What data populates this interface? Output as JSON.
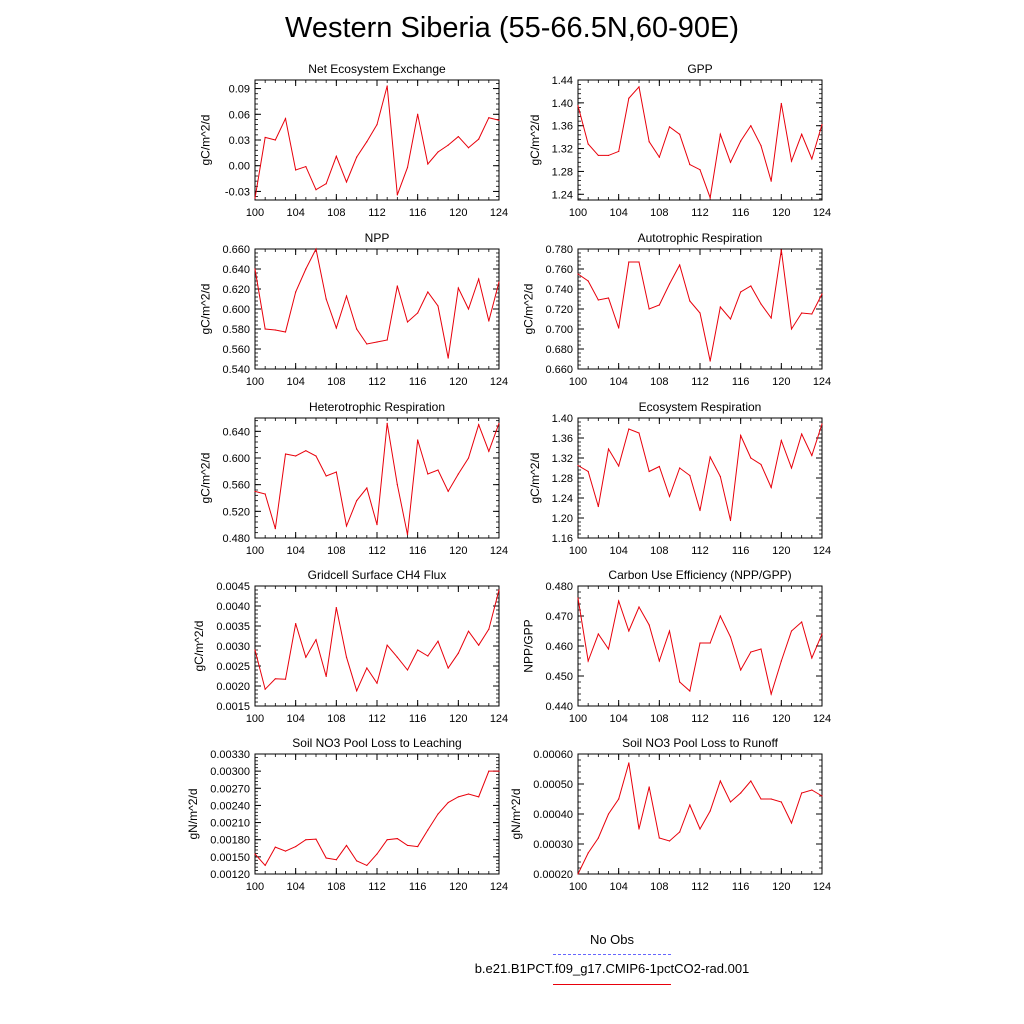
{
  "title": "Western Siberia (55-66.5N,60-90E)",
  "legend": {
    "obs_label": "No Obs",
    "obs_color": "#6666ff",
    "model_label": "b.e21.B1PCT.f09_g17.CMIP6-1pctCO2-rad.001",
    "model_color": "#e8000b"
  },
  "chart_data": [
    {
      "type": "line",
      "title": "Net Ecosystem Exchange",
      "ylabel": "gC/m^2/d",
      "xlim": [
        100,
        124
      ],
      "ylim": [
        -0.04,
        0.1
      ],
      "xticks": [
        "100",
        "104",
        "108",
        "112",
        "116",
        "120",
        "124"
      ],
      "yticks": [
        "-0.03",
        "0.00",
        "0.03",
        "0.06",
        "0.09"
      ],
      "x": [
        100,
        101,
        102,
        103,
        104,
        105,
        106,
        107,
        108,
        109,
        110,
        111,
        112,
        113,
        114,
        115,
        116,
        117,
        118,
        119,
        120,
        121,
        122,
        123,
        124
      ],
      "values": [
        -0.038,
        0.033,
        0.03,
        0.055,
        -0.005,
        -0.001,
        -0.028,
        -0.021,
        0.011,
        -0.019,
        0.01,
        0.028,
        0.048,
        0.093,
        -0.034,
        -0.002,
        0.06,
        0.002,
        0.016,
        0.024,
        0.034,
        0.021,
        0.031,
        0.056,
        0.053
      ]
    },
    {
      "type": "line",
      "title": "GPP",
      "ylabel": "gC/m^2/d",
      "xlim": [
        100,
        124
      ],
      "ylim": [
        1.23,
        1.44
      ],
      "xticks": [
        "100",
        "104",
        "108",
        "112",
        "116",
        "120",
        "124"
      ],
      "yticks": [
        "1.24",
        "1.28",
        "1.32",
        "1.36",
        "1.40",
        "1.44"
      ],
      "x": [
        100,
        101,
        102,
        103,
        104,
        105,
        106,
        107,
        108,
        109,
        110,
        111,
        112,
        113,
        114,
        115,
        116,
        117,
        118,
        119,
        120,
        121,
        122,
        123,
        124
      ],
      "values": [
        1.395,
        1.328,
        1.308,
        1.308,
        1.315,
        1.408,
        1.428,
        1.332,
        1.305,
        1.358,
        1.345,
        1.292,
        1.283,
        1.234,
        1.345,
        1.296,
        1.333,
        1.36,
        1.325,
        1.263,
        1.399,
        1.298,
        1.345,
        1.302,
        1.362
      ]
    },
    {
      "type": "line",
      "title": "NPP",
      "ylabel": "gC/m^2/d",
      "xlim": [
        100,
        124
      ],
      "ylim": [
        0.54,
        0.66
      ],
      "xticks": [
        "100",
        "104",
        "108",
        "112",
        "116",
        "120",
        "124"
      ],
      "yticks": [
        "0.540",
        "0.560",
        "0.580",
        "0.600",
        "0.620",
        "0.640",
        "0.660"
      ],
      "x": [
        100,
        101,
        102,
        103,
        104,
        105,
        106,
        107,
        108,
        109,
        110,
        111,
        112,
        113,
        114,
        115,
        116,
        117,
        118,
        119,
        120,
        121,
        122,
        123,
        124
      ],
      "values": [
        0.64,
        0.58,
        0.579,
        0.577,
        0.617,
        0.64,
        0.66,
        0.61,
        0.581,
        0.613,
        0.58,
        0.565,
        0.567,
        0.569,
        0.623,
        0.587,
        0.596,
        0.617,
        0.603,
        0.551,
        0.621,
        0.6,
        0.63,
        0.588,
        0.627
      ]
    },
    {
      "type": "line",
      "title": "Autotrophic Respiration",
      "ylabel": "gC/m^2/d",
      "xlim": [
        100,
        124
      ],
      "ylim": [
        0.66,
        0.78
      ],
      "xticks": [
        "100",
        "104",
        "108",
        "112",
        "116",
        "120",
        "124"
      ],
      "yticks": [
        "0.660",
        "0.680",
        "0.700",
        "0.720",
        "0.740",
        "0.760",
        "0.780"
      ],
      "x": [
        100,
        101,
        102,
        103,
        104,
        105,
        106,
        107,
        108,
        109,
        110,
        111,
        112,
        113,
        114,
        115,
        116,
        117,
        118,
        119,
        120,
        121,
        122,
        123,
        124
      ],
      "values": [
        0.755,
        0.748,
        0.729,
        0.731,
        0.701,
        0.767,
        0.767,
        0.72,
        0.724,
        0.745,
        0.764,
        0.728,
        0.716,
        0.668,
        0.722,
        0.71,
        0.737,
        0.743,
        0.725,
        0.711,
        0.779,
        0.7,
        0.716,
        0.715,
        0.735
      ]
    },
    {
      "type": "line",
      "title": "Heterotrophic Respiration",
      "ylabel": "gC/m^2/d",
      "xlim": [
        100,
        124
      ],
      "ylim": [
        0.48,
        0.66
      ],
      "xticks": [
        "100",
        "104",
        "108",
        "112",
        "116",
        "120",
        "124"
      ],
      "yticks": [
        "0.480",
        "0.520",
        "0.560",
        "0.600",
        "0.640"
      ],
      "x": [
        100,
        101,
        102,
        103,
        104,
        105,
        106,
        107,
        108,
        109,
        110,
        111,
        112,
        113,
        114,
        115,
        116,
        117,
        118,
        119,
        120,
        121,
        122,
        123,
        124
      ],
      "values": [
        0.55,
        0.546,
        0.494,
        0.606,
        0.603,
        0.611,
        0.603,
        0.573,
        0.579,
        0.498,
        0.536,
        0.555,
        0.5,
        0.652,
        0.56,
        0.485,
        0.627,
        0.576,
        0.582,
        0.55,
        0.576,
        0.6,
        0.65,
        0.61,
        0.652
      ]
    },
    {
      "type": "line",
      "title": "Ecosystem Respiration",
      "ylabel": "gC/m^2/d",
      "xlim": [
        100,
        124
      ],
      "ylim": [
        1.16,
        1.4
      ],
      "xticks": [
        "100",
        "104",
        "108",
        "112",
        "116",
        "120",
        "124"
      ],
      "yticks": [
        "1.16",
        "1.20",
        "1.24",
        "1.28",
        "1.32",
        "1.36",
        "1.40"
      ],
      "x": [
        100,
        101,
        102,
        103,
        104,
        105,
        106,
        107,
        108,
        109,
        110,
        111,
        112,
        113,
        114,
        115,
        116,
        117,
        118,
        119,
        120,
        121,
        122,
        123,
        124
      ],
      "values": [
        1.305,
        1.293,
        1.223,
        1.338,
        1.304,
        1.378,
        1.37,
        1.293,
        1.303,
        1.243,
        1.3,
        1.285,
        1.215,
        1.322,
        1.283,
        1.195,
        1.365,
        1.32,
        1.307,
        1.261,
        1.355,
        1.3,
        1.368,
        1.325,
        1.388
      ]
    },
    {
      "type": "line",
      "title": "Gridcell Surface CH4 Flux",
      "ylabel": "gC/m^2/d",
      "xlim": [
        100,
        124
      ],
      "ylim": [
        0.0015,
        0.0045
      ],
      "xticks": [
        "100",
        "104",
        "108",
        "112",
        "116",
        "120",
        "124"
      ],
      "yticks": [
        "0.0015",
        "0.0020",
        "0.0025",
        "0.0030",
        "0.0035",
        "0.0040",
        "0.0045"
      ],
      "x": [
        100,
        101,
        102,
        103,
        104,
        105,
        106,
        107,
        108,
        109,
        110,
        111,
        112,
        113,
        114,
        115,
        116,
        117,
        118,
        119,
        120,
        121,
        122,
        123,
        124
      ],
      "values": [
        0.0029,
        0.00192,
        0.00218,
        0.00217,
        0.00356,
        0.00272,
        0.00316,
        0.00224,
        0.00396,
        0.00272,
        0.00188,
        0.00245,
        0.00207,
        0.00302,
        0.00272,
        0.0024,
        0.0029,
        0.00275,
        0.00312,
        0.00245,
        0.00282,
        0.00337,
        0.00302,
        0.00342,
        0.0044
      ]
    },
    {
      "type": "line",
      "title": "Carbon Use Efficiency (NPP/GPP)",
      "ylabel": "NPP/GPP",
      "xlim": [
        100,
        124
      ],
      "ylim": [
        0.44,
        0.48
      ],
      "xticks": [
        "100",
        "104",
        "108",
        "112",
        "116",
        "120",
        "124"
      ],
      "yticks": [
        "0.440",
        "0.450",
        "0.460",
        "0.470",
        "0.480"
      ],
      "x": [
        100,
        101,
        102,
        103,
        104,
        105,
        106,
        107,
        108,
        109,
        110,
        111,
        112,
        113,
        114,
        115,
        116,
        117,
        118,
        119,
        120,
        121,
        122,
        123,
        124
      ],
      "values": [
        0.476,
        0.455,
        0.464,
        0.459,
        0.475,
        0.465,
        0.473,
        0.467,
        0.455,
        0.465,
        0.448,
        0.445,
        0.461,
        0.461,
        0.47,
        0.463,
        0.452,
        0.458,
        0.459,
        0.444,
        0.455,
        0.465,
        0.468,
        0.456,
        0.464
      ]
    },
    {
      "type": "line",
      "title": "Soil NO3 Pool Loss to Leaching",
      "ylabel": "gN/m^2/d",
      "xlim": [
        100,
        124
      ],
      "ylim": [
        0.0012,
        0.0033
      ],
      "xticks": [
        "100",
        "104",
        "108",
        "112",
        "116",
        "120",
        "124"
      ],
      "yticks": [
        "0.00120",
        "0.00150",
        "0.00180",
        "0.00210",
        "0.00240",
        "0.00270",
        "0.00300",
        "0.00330"
      ],
      "x": [
        100,
        101,
        102,
        103,
        104,
        105,
        106,
        107,
        108,
        109,
        110,
        111,
        112,
        113,
        114,
        115,
        116,
        117,
        118,
        119,
        120,
        121,
        122,
        123,
        124
      ],
      "values": [
        0.00155,
        0.00135,
        0.00167,
        0.0016,
        0.00168,
        0.0018,
        0.00181,
        0.00148,
        0.00145,
        0.0017,
        0.00143,
        0.00135,
        0.00155,
        0.0018,
        0.00182,
        0.0017,
        0.00168,
        0.00197,
        0.00225,
        0.00245,
        0.00255,
        0.0026,
        0.00255,
        0.003,
        0.003
      ]
    },
    {
      "type": "line",
      "title": "Soil NO3 Pool Loss to Runoff",
      "ylabel": "gN/m^2/d",
      "xlim": [
        100,
        124
      ],
      "ylim": [
        0.0002,
        0.0006
      ],
      "xticks": [
        "100",
        "104",
        "108",
        "112",
        "116",
        "120",
        "124"
      ],
      "yticks": [
        "0.00020",
        "0.00030",
        "0.00040",
        "0.00050",
        "0.00060"
      ],
      "x": [
        100,
        101,
        102,
        103,
        104,
        105,
        106,
        107,
        108,
        109,
        110,
        111,
        112,
        113,
        114,
        115,
        116,
        117,
        118,
        119,
        120,
        121,
        122,
        123,
        124
      ],
      "values": [
        0.0002,
        0.00027,
        0.00032,
        0.0004,
        0.00045,
        0.00057,
        0.00035,
        0.00049,
        0.00032,
        0.00031,
        0.00034,
        0.00043,
        0.00035,
        0.00041,
        0.00051,
        0.00044,
        0.00047,
        0.00051,
        0.00045,
        0.00045,
        0.00044,
        0.00037,
        0.00047,
        0.00048,
        0.00046
      ]
    }
  ]
}
